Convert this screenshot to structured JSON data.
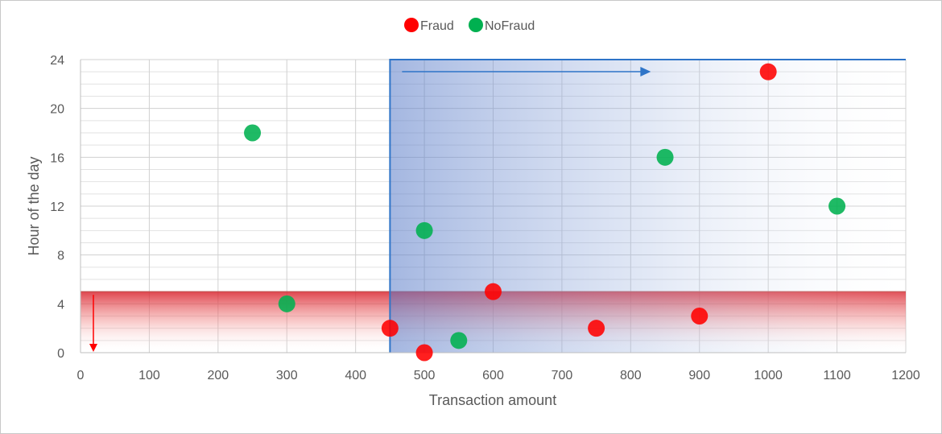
{
  "chart_data": {
    "type": "scatter",
    "xlabel": "Transaction amount",
    "ylabel": "Hour of the day",
    "xlim": [
      0,
      1200
    ],
    "ylim": [
      0,
      24
    ],
    "xticks": [
      "0",
      "100",
      "200",
      "300",
      "400",
      "500",
      "600",
      "700",
      "800",
      "900",
      "1000",
      "1100",
      "1200"
    ],
    "yticks": [
      "0",
      "4",
      "8",
      "12",
      "16",
      "20",
      "24"
    ],
    "grid": true,
    "legend_position": "top-center",
    "series": [
      {
        "name": "Fraud",
        "color": "#ff0000",
        "points": [
          {
            "x": 450,
            "y": 2
          },
          {
            "x": 500,
            "y": 0
          },
          {
            "x": 600,
            "y": 5
          },
          {
            "x": 750,
            "y": 2
          },
          {
            "x": 900,
            "y": 3
          },
          {
            "x": 1000,
            "y": 23
          }
        ]
      },
      {
        "name": "NoFraud",
        "color": "#00b050",
        "points": [
          {
            "x": 250,
            "y": 18
          },
          {
            "x": 300,
            "y": 4
          },
          {
            "x": 500,
            "y": 10
          },
          {
            "x": 550,
            "y": 1
          },
          {
            "x": 850,
            "y": 16
          },
          {
            "x": 1100,
            "y": 12
          }
        ]
      }
    ],
    "highlight_regions": [
      {
        "kind": "horizontal-band",
        "y_from": 0,
        "y_to": 5,
        "color": "#e03030",
        "arrow": "down"
      },
      {
        "kind": "vertical-band",
        "x_from": 450,
        "x_to": 1200,
        "color": "#2e74c8",
        "arrow": "right"
      }
    ]
  }
}
